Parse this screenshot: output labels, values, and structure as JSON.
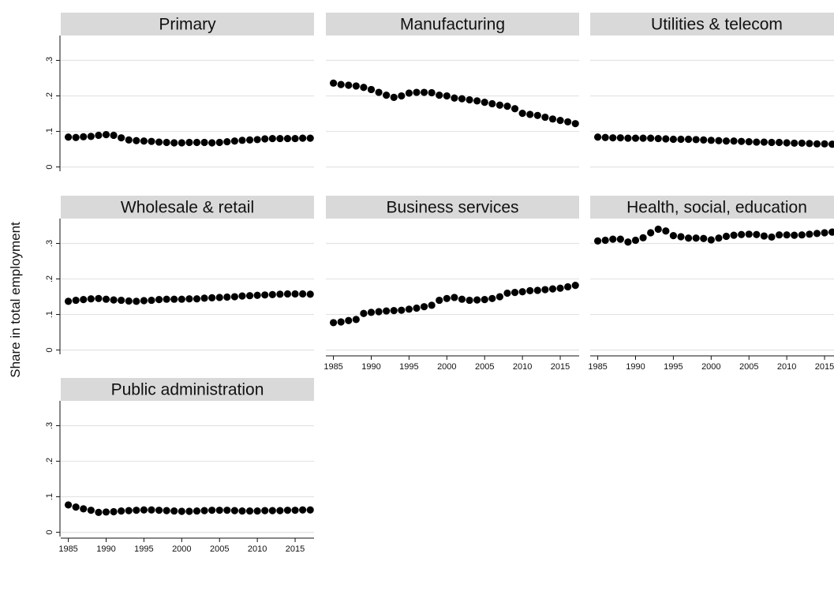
{
  "chart_data": {
    "type": "scatter",
    "ylabel": "Share in total employment",
    "x": [
      1985,
      1986,
      1987,
      1988,
      1989,
      1990,
      1991,
      1992,
      1993,
      1994,
      1995,
      1996,
      1997,
      1998,
      1999,
      2000,
      2001,
      2002,
      2003,
      2004,
      2005,
      2006,
      2007,
      2008,
      2009,
      2010,
      2011,
      2012,
      2013,
      2014,
      2015,
      2016,
      2017
    ],
    "xlim": [
      1984,
      2017.5
    ],
    "ylim": [
      -0.012,
      0.37
    ],
    "xticks": [
      1985,
      1990,
      1995,
      2000,
      2005,
      2010,
      2015
    ],
    "xtick_labels": [
      "1985",
      "1990",
      "1995",
      "2000",
      "2005",
      "2010",
      "2015"
    ],
    "yticks": [
      0,
      0.1,
      0.2,
      0.3
    ],
    "ytick_labels": [
      "0",
      ".1",
      ".2",
      ".3"
    ],
    "grid": true,
    "marker_color": "#000000",
    "panel_header_color": "#d9d9d9",
    "series": [
      {
        "name": "Primary",
        "values": [
          0.084,
          0.083,
          0.085,
          0.086,
          0.089,
          0.091,
          0.089,
          0.082,
          0.076,
          0.074,
          0.073,
          0.072,
          0.07,
          0.069,
          0.068,
          0.068,
          0.069,
          0.069,
          0.069,
          0.068,
          0.069,
          0.071,
          0.073,
          0.075,
          0.076,
          0.077,
          0.079,
          0.08,
          0.08,
          0.08,
          0.08,
          0.081,
          0.081
        ]
      },
      {
        "name": "Manufacturing",
        "values": [
          0.236,
          0.232,
          0.23,
          0.228,
          0.224,
          0.218,
          0.21,
          0.202,
          0.196,
          0.2,
          0.208,
          0.21,
          0.21,
          0.209,
          0.202,
          0.2,
          0.194,
          0.192,
          0.189,
          0.186,
          0.182,
          0.178,
          0.174,
          0.171,
          0.164,
          0.151,
          0.148,
          0.145,
          0.14,
          0.135,
          0.131,
          0.127,
          0.122
        ]
      },
      {
        "name": "Utilities & telecom",
        "values": [
          0.084,
          0.083,
          0.082,
          0.082,
          0.081,
          0.081,
          0.081,
          0.081,
          0.08,
          0.079,
          0.078,
          0.078,
          0.078,
          0.077,
          0.076,
          0.075,
          0.074,
          0.073,
          0.073,
          0.072,
          0.071,
          0.07,
          0.07,
          0.069,
          0.069,
          0.068,
          0.067,
          0.067,
          0.066,
          0.065,
          0.065,
          0.064,
          0.063
        ]
      },
      {
        "name": "Wholesale & retail",
        "values": [
          0.137,
          0.14,
          0.142,
          0.144,
          0.145,
          0.143,
          0.141,
          0.14,
          0.138,
          0.137,
          0.139,
          0.14,
          0.142,
          0.143,
          0.143,
          0.143,
          0.144,
          0.144,
          0.146,
          0.147,
          0.148,
          0.149,
          0.15,
          0.152,
          0.153,
          0.154,
          0.155,
          0.156,
          0.157,
          0.158,
          0.158,
          0.158,
          0.157
        ]
      },
      {
        "name": "Business services",
        "values": [
          0.077,
          0.079,
          0.083,
          0.086,
          0.103,
          0.106,
          0.108,
          0.11,
          0.111,
          0.112,
          0.115,
          0.118,
          0.122,
          0.126,
          0.14,
          0.145,
          0.148,
          0.143,
          0.14,
          0.141,
          0.142,
          0.145,
          0.15,
          0.16,
          0.162,
          0.164,
          0.167,
          0.168,
          0.17,
          0.172,
          0.174,
          0.178,
          0.182
        ]
      },
      {
        "name": "Health, social, education",
        "values": [
          0.307,
          0.309,
          0.312,
          0.312,
          0.304,
          0.309,
          0.316,
          0.33,
          0.34,
          0.335,
          0.322,
          0.319,
          0.315,
          0.315,
          0.314,
          0.31,
          0.315,
          0.32,
          0.323,
          0.325,
          0.326,
          0.325,
          0.321,
          0.318,
          0.324,
          0.324,
          0.323,
          0.324,
          0.326,
          0.328,
          0.33,
          0.332,
          0.33
        ]
      },
      {
        "name": "Public administration",
        "values": [
          0.077,
          0.071,
          0.066,
          0.062,
          0.056,
          0.057,
          0.058,
          0.06,
          0.061,
          0.062,
          0.063,
          0.063,
          0.062,
          0.061,
          0.06,
          0.059,
          0.059,
          0.06,
          0.061,
          0.062,
          0.062,
          0.062,
          0.061,
          0.06,
          0.06,
          0.06,
          0.061,
          0.061,
          0.061,
          0.062,
          0.062,
          0.063,
          0.063
        ]
      }
    ]
  }
}
